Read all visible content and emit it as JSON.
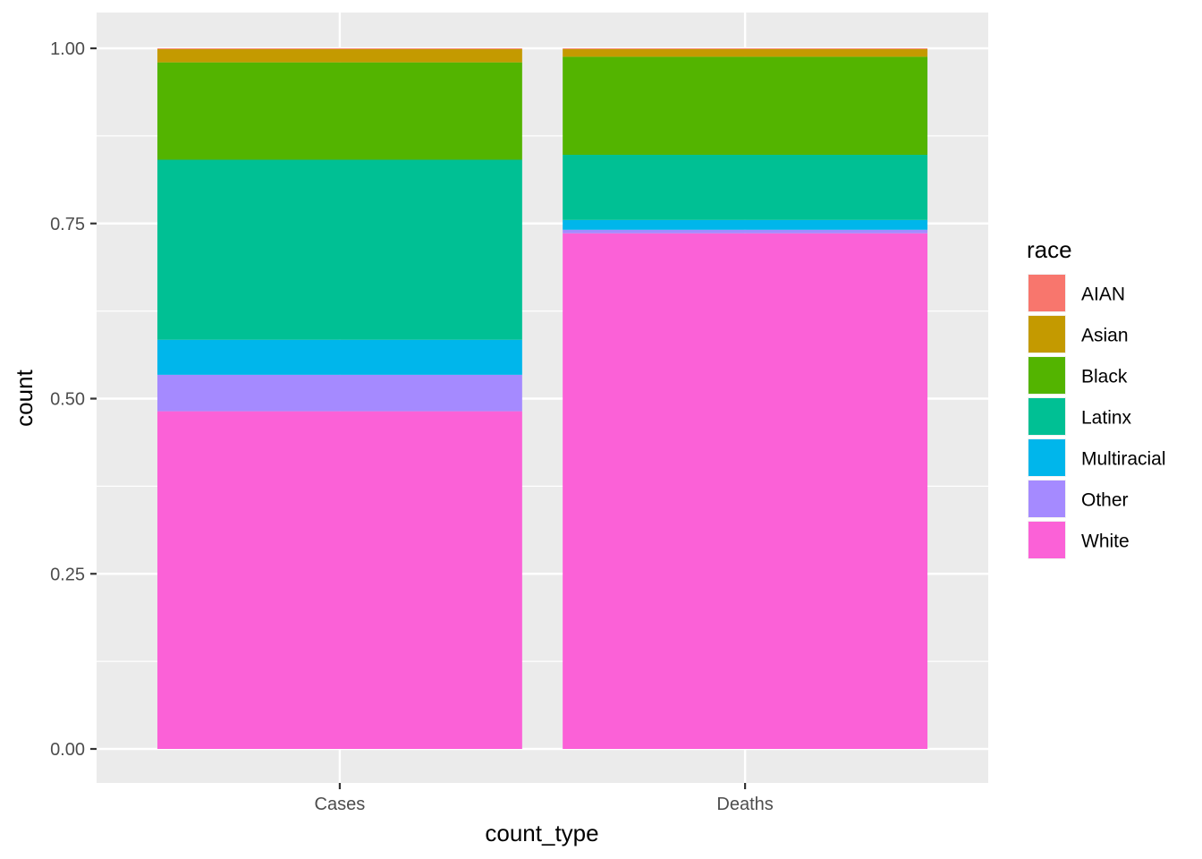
{
  "chart_data": {
    "type": "bar",
    "stacked": true,
    "xlabel": "count_type",
    "ylabel": "count",
    "categories": [
      "Cases",
      "Deaths"
    ],
    "ylim": [
      0,
      1
    ],
    "yticks": [
      "0.00",
      "0.25",
      "0.50",
      "0.75",
      "1.00"
    ],
    "grid": true,
    "legend": {
      "title": "race",
      "position": "right"
    },
    "series": [
      {
        "name": "AIAN",
        "color": "#F8766D",
        "values": [
          0.001,
          0.001
        ]
      },
      {
        "name": "Asian",
        "color": "#C49A00",
        "values": [
          0.019,
          0.011
        ]
      },
      {
        "name": "Black",
        "color": "#53B400",
        "values": [
          0.139,
          0.14
        ]
      },
      {
        "name": "Latinx",
        "color": "#00C094",
        "values": [
          0.257,
          0.093
        ]
      },
      {
        "name": "Multiracial",
        "color": "#00B6EB",
        "values": [
          0.05,
          0.014
        ]
      },
      {
        "name": "Other",
        "color": "#A58AFF",
        "values": [
          0.052,
          0.005
        ]
      },
      {
        "name": "White",
        "color": "#FB61D7",
        "values": [
          0.482,
          0.736
        ]
      }
    ]
  }
}
